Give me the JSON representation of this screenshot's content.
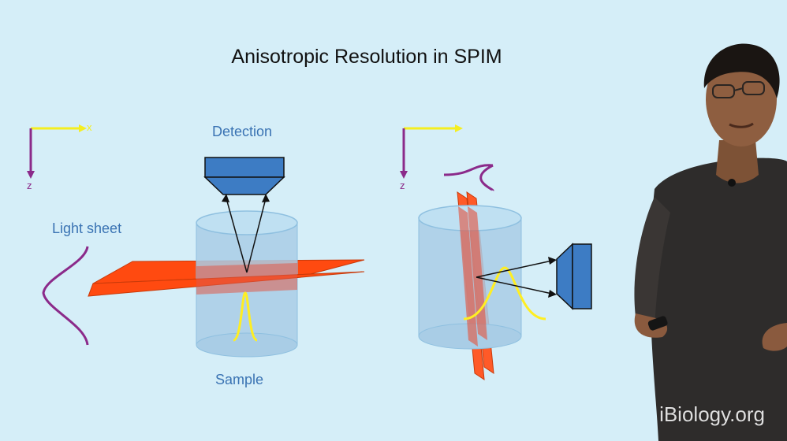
{
  "slide": {
    "title": "Anisotropic Resolution in SPIM",
    "labels": {
      "detection": "Detection",
      "light_sheet": "Light sheet",
      "sample": "Sample"
    },
    "left_axes": {
      "x_label": "x",
      "z_label": "z"
    },
    "right_axes": {
      "z_label": "z"
    }
  },
  "watermark": "iBiology.org",
  "colors": {
    "background": "#d5eef8",
    "sheet": "#ff4a10",
    "sample_fill": "#a9cde6",
    "objective": "#3d7cc4",
    "psf_yellow": "#ffee22",
    "axis_purple": "#8b2a8a",
    "axis_yellow": "#f5ee20",
    "label_blue": "#3a73b3"
  }
}
